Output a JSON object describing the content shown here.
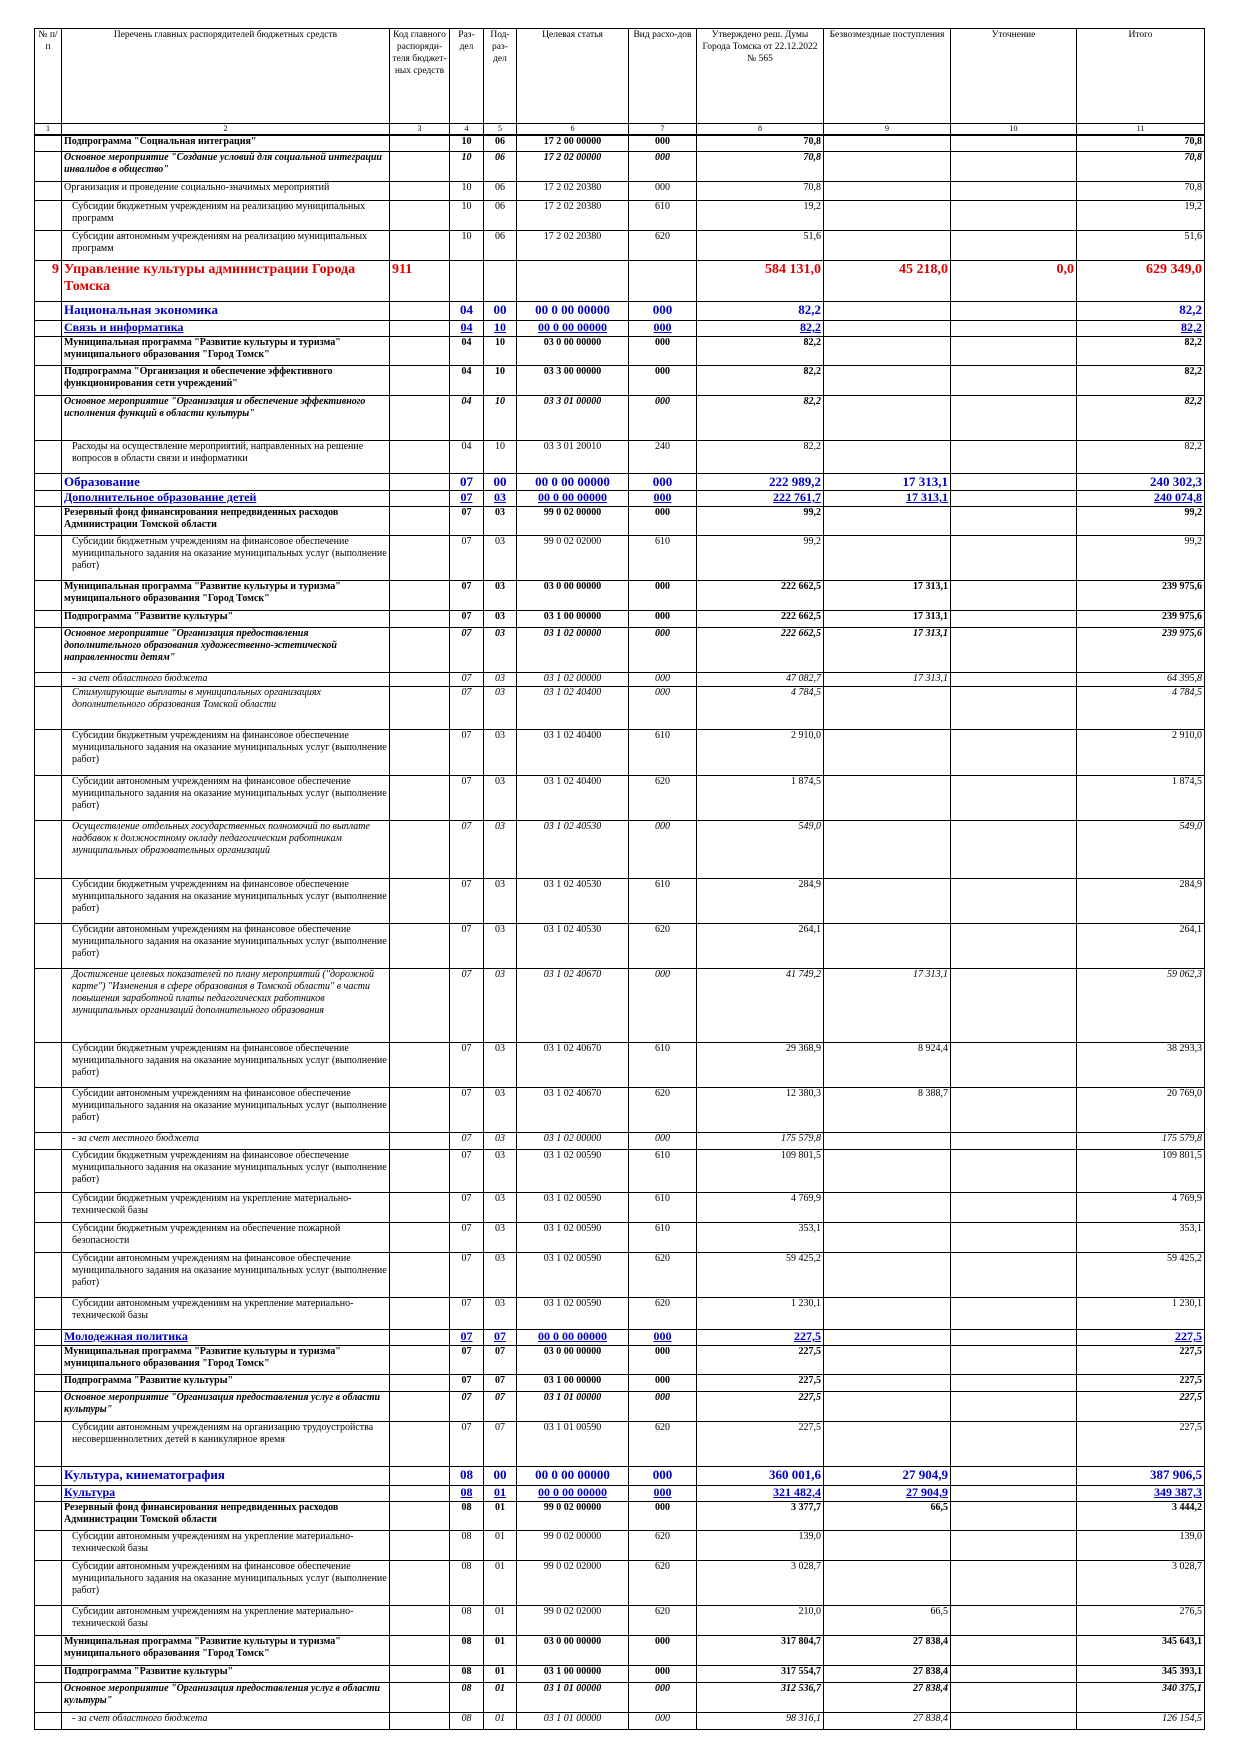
{
  "table": {
    "header": [
      "№ п/п",
      "Перечень главных распорядителей бюджетных средств",
      "Код главного распоряди-теля бюджет-ных средств",
      "Раз-дел",
      "Под-раз-дел",
      "Целевая статья",
      "Вид расхо-дов",
      "Утверждено реш. Думы Города Томска от 22.12.2022 № 565",
      "Безвозмездные поступления",
      "Уточнение",
      "Итого"
    ],
    "column_numbers": [
      1,
      2,
      3,
      4,
      5,
      6,
      7,
      8,
      9,
      10,
      11
    ],
    "rows": [
      [
        null,
        "Подпрограмма \"Социальная интеграция\"",
        null,
        "10",
        "06",
        "17 2 00 00000",
        "000",
        "70,8",
        null,
        null,
        "70,8"
      ],
      [
        null,
        "Основное мероприятие \"Создание условий для социальной интеграции инвалидов в общество\"",
        null,
        "10",
        "06",
        "17 2 02 00000",
        "000",
        "70,8",
        null,
        null,
        "70,8"
      ],
      [
        null,
        "Организация и проведение социально-значимых мероприятий",
        null,
        "10",
        "06",
        "17 2 02 20380",
        "000",
        "70,8",
        null,
        null,
        "70,8"
      ],
      [
        null,
        "Субсидии бюджетным учреждениям на реализацию муниципальных программ",
        null,
        "10",
        "06",
        "17 2 02 20380",
        "610",
        "19,2",
        null,
        null,
        "19,2"
      ],
      [
        null,
        "Субсидии автономным учреждениям на реализацию муниципальных программ",
        null,
        "10",
        "06",
        "17 2 02 20380",
        "620",
        "51,6",
        null,
        null,
        "51,6"
      ],
      [
        "9",
        "Управление культуры администрации Города Томска",
        "911",
        null,
        null,
        null,
        null,
        "584 131,0",
        "45 218,0",
        "0,0",
        "629 349,0"
      ],
      [
        null,
        "Национальная экономика",
        null,
        "04",
        "00",
        "00 0 00 00000",
        "000",
        "82,2",
        null,
        null,
        "82,2"
      ],
      [
        null,
        "Связь и информатика",
        null,
        "04",
        "10",
        "00 0 00 00000",
        "000",
        "82,2",
        null,
        null,
        "82,2"
      ],
      [
        null,
        "Муниципальная программа \"Развитие культуры и туризма\" муниципального образования \"Город Томск\"",
        null,
        "04",
        "10",
        "03 0 00 00000",
        "000",
        "82,2",
        null,
        null,
        "82,2"
      ],
      [
        null,
        "Подпрограмма \"Организация и обеспечение эффективного функционирования сети учреждений\"",
        null,
        "04",
        "10",
        "03 3 00 00000",
        "000",
        "82,2",
        null,
        null,
        "82,2"
      ],
      [
        null,
        "Основное мероприятие \"Организация и обеспечение эффективного исполнения функций в области культуры\"",
        null,
        "04",
        "10",
        "03 3 01 00000",
        "000",
        "82,2",
        null,
        null,
        "82,2"
      ],
      [
        null,
        "Расходы на осуществление мероприятий, направленных на решение вопросов в области связи и информатики",
        null,
        "04",
        "10",
        "03 3 01 20010",
        "240",
        "82,2",
        null,
        null,
        "82,2"
      ],
      [
        null,
        "Образование",
        null,
        "07",
        "00",
        "00 0 00 00000",
        "000",
        "222 989,2",
        "17 313,1",
        null,
        "240 302,3"
      ],
      [
        null,
        "Дополнительное образование детей",
        null,
        "07",
        "03",
        "00 0 00 00000",
        "000",
        "222 761,7",
        "17 313,1",
        null,
        "240 074,8"
      ],
      [
        null,
        "Резервный фонд финансирования непредвиденных расходов Администрации Томской области",
        null,
        "07",
        "03",
        "99 0 02 00000",
        "000",
        "99,2",
        null,
        null,
        "99,2"
      ],
      [
        null,
        "Субсидии бюджетным учреждениям на финансовое обеспечение муниципального задания на оказание муниципальных услуг (выполнение работ)",
        null,
        "07",
        "03",
        "99 0 02 02000",
        "610",
        "99,2",
        null,
        null,
        "99,2"
      ],
      [
        null,
        "Муниципальная программа \"Развитие культуры и туризма\" муниципального образования \"Город Томск\"",
        null,
        "07",
        "03",
        "03 0 00 00000",
        "000",
        "222 662,5",
        "17 313,1",
        null,
        "239 975,6"
      ],
      [
        null,
        "Подпрограмма \"Развитие культуры\"",
        null,
        "07",
        "03",
        "03 1 00 00000",
        "000",
        "222 662,5",
        "17 313,1",
        null,
        "239 975,6"
      ],
      [
        null,
        "Основное мероприятие \"Организация предоставления дополнительного образования художественно-эстетической направленности детям\"",
        null,
        "07",
        "03",
        "03 1 02 00000",
        "000",
        "222 662,5",
        "17 313,1",
        null,
        "239 975,6"
      ],
      [
        null,
        "- за счет областного бюджета",
        null,
        "07",
        "03",
        "03 1 02 00000",
        "000",
        "47 082,7",
        "17 313,1",
        null,
        "64 395,8"
      ],
      [
        null,
        "Стимулирующие выплаты в муниципальных организациях дополнительного образования Томской области",
        null,
        "07",
        "03",
        "03 1 02 40400",
        "000",
        "4 784,5",
        null,
        null,
        "4 784,5"
      ],
      [
        null,
        "Субсидии бюджетным учреждениям на финансовое обеспечение муниципального задания на оказание муниципальных услуг (выполнение работ)",
        null,
        "07",
        "03",
        "03 1 02 40400",
        "610",
        "2 910,0",
        null,
        null,
        "2 910,0"
      ],
      [
        null,
        "Субсидии автономным учреждениям на финансовое обеспечение муниципального задания на оказание муниципальных услуг (выполнение работ)",
        null,
        "07",
        "03",
        "03 1 02 40400",
        "620",
        "1 874,5",
        null,
        null,
        "1 874,5"
      ],
      [
        null,
        "Осуществление отдельных государственных полномочий по выплате надбавок к должностному окладу педагогическим работникам муниципальных образовательных организаций",
        null,
        "07",
        "03",
        "03 1 02 40530",
        "000",
        "549,0",
        null,
        null,
        "549,0"
      ],
      [
        null,
        "Субсидии бюджетным учреждениям на финансовое обеспечение муниципального задания на оказание муниципальных услуг (выполнение работ)",
        null,
        "07",
        "03",
        "03 1 02 40530",
        "610",
        "284,9",
        null,
        null,
        "284,9"
      ],
      [
        null,
        "Субсидии автономным учреждениям на финансовое обеспечение муниципального задания на оказание муниципальных услуг (выполнение работ)",
        null,
        "07",
        "03",
        "03 1 02 40530",
        "620",
        "264,1",
        null,
        null,
        "264,1"
      ],
      [
        null,
        "Достижение целевых показателей по плану мероприятий (\"дорожной карте\") \"Изменения в сфере образования в Томской области\" в части повышения заработной платы педагогических работников муниципальных организаций дополнительного образования",
        null,
        "07",
        "03",
        "03 1 02 40670",
        "000",
        "41 749,2",
        "17 313,1",
        null,
        "59 062,3"
      ],
      [
        null,
        "Субсидии бюджетным учреждениям на финансовое обеспечение муниципального задания на оказание муниципальных услуг (выполнение работ)",
        null,
        "07",
        "03",
        "03 1 02 40670",
        "610",
        "29 368,9",
        "8 924,4",
        null,
        "38 293,3"
      ],
      [
        null,
        "Субсидии автономным учреждениям на финансовое обеспечение муниципального задания на оказание муниципальных услуг (выполнение работ)",
        null,
        "07",
        "03",
        "03 1 02 40670",
        "620",
        "12 380,3",
        "8 388,7",
        null,
        "20 769,0"
      ],
      [
        null,
        "- за счет местного бюджета",
        null,
        "07",
        "03",
        "03 1 02 00000",
        "000",
        "175 579,8",
        null,
        null,
        "175 579,8"
      ],
      [
        null,
        "Субсидии бюджетным учреждениям на финансовое обеспечение муниципального задания на оказание муниципальных услуг (выполнение работ)",
        null,
        "07",
        "03",
        "03 1 02 00590",
        "610",
        "109 801,5",
        null,
        null,
        "109 801,5"
      ],
      [
        null,
        "Субсидии бюджетным учреждениям на укрепление материально-технической базы",
        null,
        "07",
        "03",
        "03 1 02 00590",
        "610",
        "4 769,9",
        null,
        null,
        "4 769,9"
      ],
      [
        null,
        "Субсидии бюджетным учреждениям на обеспечение пожарной безопасности",
        null,
        "07",
        "03",
        "03 1 02 00590",
        "610",
        "353,1",
        null,
        null,
        "353,1"
      ],
      [
        null,
        "Субсидии автономным учреждениям на финансовое обеспечение муниципального задания на оказание муниципальных услуг (выполнение работ)",
        null,
        "07",
        "03",
        "03 1 02 00590",
        "620",
        "59 425,2",
        null,
        null,
        "59 425,2"
      ],
      [
        null,
        "Субсидии автономным учреждениям на укрепление материально-технической базы",
        null,
        "07",
        "03",
        "03 1 02 00590",
        "620",
        "1 230,1",
        null,
        null,
        "1 230,1"
      ],
      [
        null,
        "Молодежная политика",
        null,
        "07",
        "07",
        "00 0 00 00000",
        "000",
        "227,5",
        null,
        null,
        "227,5"
      ],
      [
        null,
        "Муниципальная программа \"Развитие культуры и туризма\" муниципального образования \"Город Томск\"",
        null,
        "07",
        "07",
        "03 0 00 00000",
        "000",
        "227,5",
        null,
        null,
        "227,5"
      ],
      [
        null,
        "Подпрограмма \"Развитие культуры\"",
        null,
        "07",
        "07",
        "03 1 00 00000",
        "000",
        "227,5",
        null,
        null,
        "227,5"
      ],
      [
        null,
        "Основное мероприятие \"Организация предоставления услуг в области культуры\"",
        null,
        "07",
        "07",
        "03 1 01 00000",
        "000",
        "227,5",
        null,
        null,
        "227,5"
      ],
      [
        null,
        "Субсидии автономным учреждениям на организацию трудоустройства несовершеннолетних детей в каникулярное время",
        null,
        "07",
        "07",
        "03 1 01 00590",
        "620",
        "227,5",
        null,
        null,
        "227,5"
      ],
      [
        null,
        "Культура, кинематография",
        null,
        "08",
        "00",
        "00 0 00 00000",
        "000",
        "360 001,6",
        "27 904,9",
        null,
        "387 906,5"
      ],
      [
        null,
        "Культура",
        null,
        "08",
        "01",
        "00 0 00 00000",
        "000",
        "321 482,4",
        "27 904,9",
        null,
        "349 387,3"
      ],
      [
        null,
        "Резервный фонд финансирования непредвиденных расходов Администрации Томской области",
        null,
        "08",
        "01",
        "99 0 02 00000",
        "000",
        "3 377,7",
        "66,5",
        null,
        "3 444,2"
      ],
      [
        null,
        "Субсидии автономным учреждениям на укрепление материально-технической базы",
        null,
        "08",
        "01",
        "99 0 02 00000",
        "620",
        "139,0",
        null,
        null,
        "139,0"
      ],
      [
        null,
        "Субсидии автономным учреждениям на финансовое обеспечение муниципального задания на оказание муниципальных услуг (выполнение работ)",
        null,
        "08",
        "01",
        "99 0 02 02000",
        "620",
        "3 028,7",
        null,
        null,
        "3 028,7"
      ],
      [
        null,
        "Субсидии автономным учреждениям на укрепление материально-технической базы",
        null,
        "08",
        "01",
        "99 0 02 02000",
        "620",
        "210,0",
        "66,5",
        null,
        "276,5"
      ],
      [
        null,
        "Муниципальная программа \"Развитие культуры и туризма\" муниципального образования \"Город Томск\"",
        null,
        "08",
        "01",
        "03 0 00 00000",
        "000",
        "317 804,7",
        "27 838,4",
        null,
        "345 643,1"
      ],
      [
        null,
        "Подпрограмма \"Развитие культуры\"",
        null,
        "08",
        "01",
        "03 1 00 00000",
        "000",
        "317 554,7",
        "27 838,4",
        null,
        "345 393,1"
      ],
      [
        null,
        "Основное мероприятие \"Организация предоставления услуг в области культуры\"",
        null,
        "08",
        "01",
        "03 1 01 00000",
        "000",
        "312 536,7",
        "27 838,4",
        null,
        "340 375,1"
      ],
      [
        null,
        "- за счет областного бюджета",
        null,
        "08",
        "01",
        "03 1 01 00000",
        "000",
        "98 316,1",
        "27 838,4",
        null,
        "126 154,5"
      ]
    ]
  }
}
